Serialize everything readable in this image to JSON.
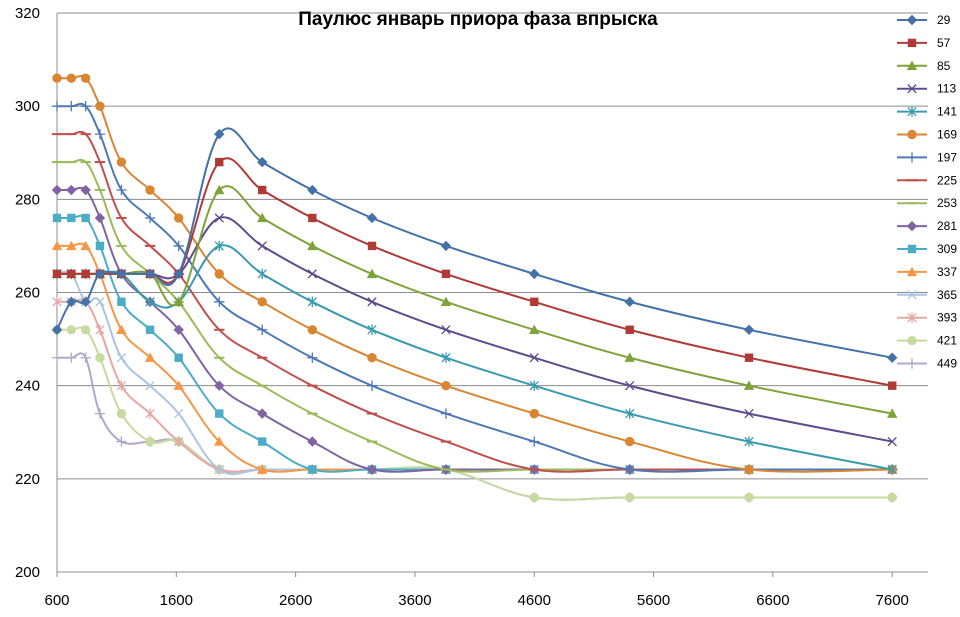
{
  "chart_data": {
    "type": "line",
    "title": "Паулюс январь приора фаза впрыска",
    "xlabel": "",
    "ylabel": "",
    "xlim": [
      600,
      7900
    ],
    "ylim": [
      200,
      320
    ],
    "xticks": [
      600,
      1600,
      2600,
      3600,
      4600,
      5600,
      6600,
      7600
    ],
    "yticks": [
      200,
      220,
      240,
      260,
      280,
      300,
      320
    ],
    "grid": "horizontal",
    "legend_position": "right",
    "x": [
      600,
      720,
      840,
      960,
      1140,
      1380,
      1620,
      1960,
      2320,
      2740,
      3240,
      3860,
      4600,
      5400,
      6400,
      7600
    ],
    "series": [
      {
        "name": "29",
        "color": "#4472A8",
        "marker": "diamond",
        "values": [
          252,
          258,
          258,
          264,
          264,
          264,
          264,
          294,
          288,
          282,
          276,
          270,
          264,
          258,
          252,
          246
        ]
      },
      {
        "name": "57",
        "color": "#B03A36",
        "marker": "square",
        "values": [
          264,
          264,
          264,
          264,
          264,
          264,
          264,
          288,
          282,
          276,
          270,
          264,
          258,
          252,
          246,
          240
        ]
      },
      {
        "name": "85",
        "color": "#7EA33A",
        "marker": "triangle",
        "values": [
          264,
          264,
          264,
          264,
          264,
          264,
          258,
          282,
          276,
          270,
          264,
          258,
          252,
          246,
          240,
          234
        ]
      },
      {
        "name": "113",
        "color": "#5F4A8A",
        "marker": "x",
        "values": [
          264,
          264,
          264,
          264,
          264,
          264,
          264,
          276,
          270,
          264,
          258,
          252,
          246,
          240,
          234,
          228
        ]
      },
      {
        "name": "141",
        "color": "#3A9AAE",
        "marker": "star",
        "values": [
          264,
          264,
          264,
          264,
          264,
          258,
          258,
          270,
          264,
          258,
          252,
          246,
          240,
          234,
          228,
          222
        ]
      },
      {
        "name": "169",
        "color": "#D98632",
        "marker": "circle",
        "values": [
          306,
          306,
          306,
          300,
          288,
          282,
          276,
          264,
          258,
          252,
          246,
          240,
          234,
          228,
          222,
          222
        ]
      },
      {
        "name": "197",
        "color": "#4E79B6",
        "marker": "plus",
        "values": [
          300,
          300,
          300,
          294,
          282,
          276,
          270,
          258,
          252,
          246,
          240,
          234,
          228,
          222,
          222,
          222
        ]
      },
      {
        "name": "225",
        "color": "#C0504D",
        "marker": "dash",
        "values": [
          294,
          294,
          294,
          288,
          276,
          270,
          264,
          252,
          246,
          240,
          234,
          228,
          222,
          222,
          222,
          222
        ]
      },
      {
        "name": "253",
        "color": "#9BBB59",
        "marker": "dash",
        "values": [
          288,
          288,
          288,
          282,
          270,
          264,
          258,
          246,
          240,
          234,
          228,
          222,
          222,
          222,
          222,
          222
        ]
      },
      {
        "name": "281",
        "color": "#8064A2",
        "marker": "diamond",
        "values": [
          282,
          282,
          282,
          276,
          264,
          258,
          252,
          240,
          234,
          228,
          222,
          222,
          222,
          222,
          222,
          222
        ]
      },
      {
        "name": "309",
        "color": "#4BACC6",
        "marker": "square",
        "values": [
          276,
          276,
          276,
          270,
          258,
          252,
          246,
          234,
          228,
          222,
          222,
          222,
          222,
          222,
          222,
          222
        ]
      },
      {
        "name": "337",
        "color": "#F79646",
        "marker": "triangle",
        "values": [
          270,
          270,
          270,
          264,
          252,
          246,
          240,
          228,
          222,
          222,
          222,
          222,
          222,
          222,
          222,
          222
        ]
      },
      {
        "name": "365",
        "color": "#A9C4E4",
        "marker": "x",
        "values": [
          264,
          264,
          258,
          258,
          246,
          240,
          234,
          222,
          222,
          222,
          222,
          222,
          222,
          222,
          222,
          222
        ]
      },
      {
        "name": "393",
        "color": "#E6A6A4",
        "marker": "star",
        "values": [
          258,
          258,
          258,
          252,
          240,
          234,
          228,
          222,
          222,
          222,
          222,
          222,
          222,
          222,
          222,
          222
        ]
      },
      {
        "name": "421",
        "color": "#C6DBA0",
        "marker": "circle",
        "values": [
          252,
          252,
          252,
          246,
          234,
          228,
          228,
          222,
          222,
          222,
          222,
          222,
          216,
          216,
          216,
          216
        ]
      },
      {
        "name": "449",
        "color": "#B3A7CC",
        "marker": "plus",
        "values": [
          246,
          246,
          246,
          234,
          228,
          228,
          228,
          222,
          222,
          222,
          222,
          222,
          216,
          216,
          216,
          216
        ]
      }
    ]
  }
}
